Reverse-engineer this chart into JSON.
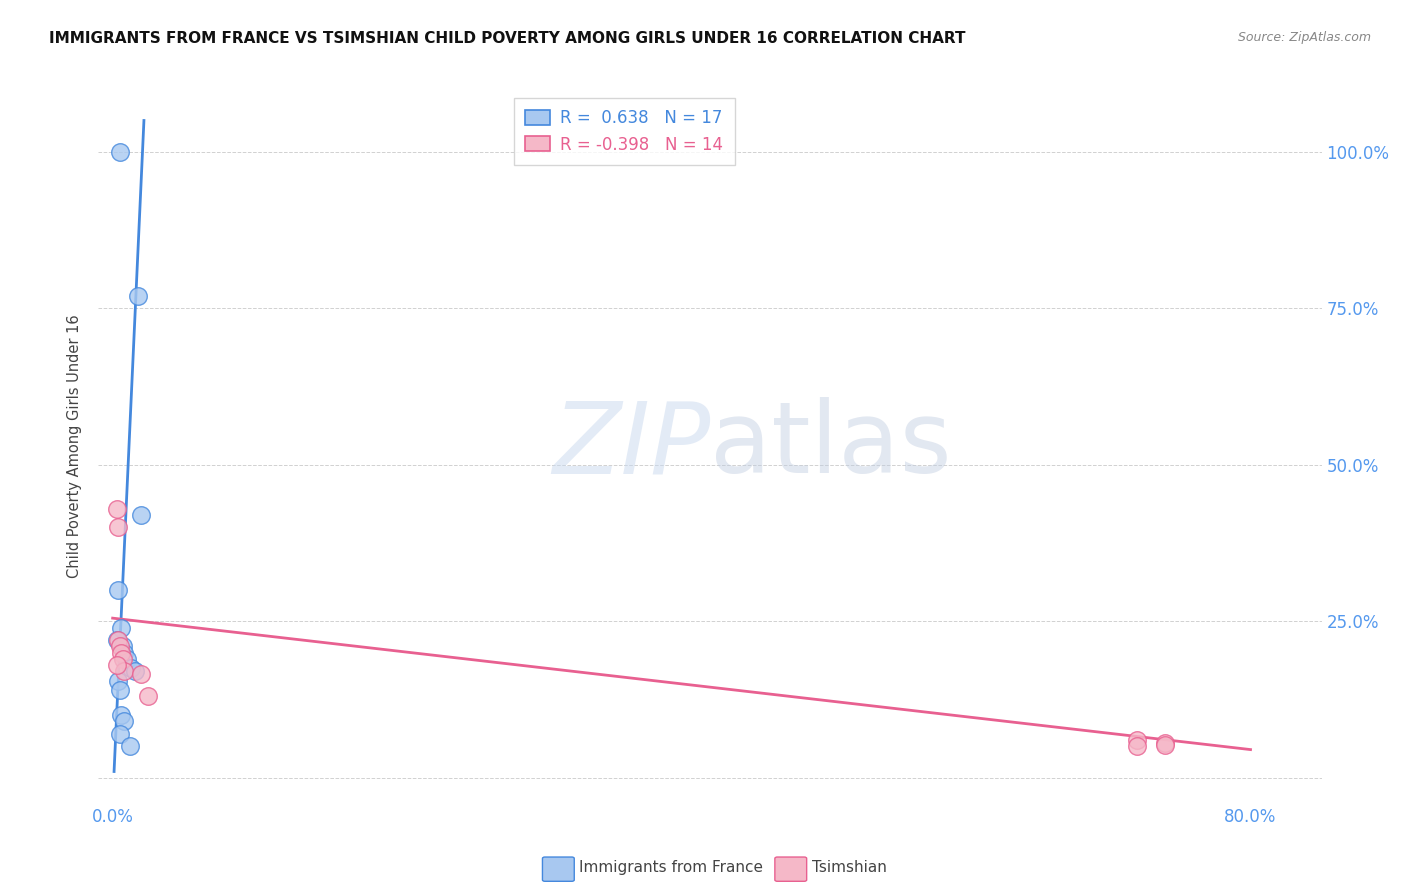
{
  "title": "IMMIGRANTS FROM FRANCE VS TSIMSHIAN CHILD POVERTY AMONG GIRLS UNDER 16 CORRELATION CHART",
  "source": "Source: ZipAtlas.com",
  "ylabel": "Child Poverty Among Girls Under 16",
  "legend_blue_r": "0.638",
  "legend_blue_n": "17",
  "legend_pink_r": "-0.398",
  "legend_pink_n": "14",
  "blue_scatter_x": [
    0.005,
    0.018,
    0.02,
    0.004,
    0.006,
    0.003,
    0.007,
    0.008,
    0.01,
    0.013,
    0.016,
    0.004,
    0.005,
    0.006,
    0.008,
    0.005,
    0.012
  ],
  "blue_scatter_y": [
    1.0,
    0.77,
    0.42,
    0.3,
    0.24,
    0.22,
    0.21,
    0.2,
    0.19,
    0.175,
    0.17,
    0.155,
    0.14,
    0.1,
    0.09,
    0.07,
    0.05
  ],
  "pink_scatter_x": [
    0.003,
    0.004,
    0.004,
    0.005,
    0.006,
    0.007,
    0.008,
    0.02,
    0.025,
    0.72,
    0.74,
    0.72,
    0.74,
    0.003
  ],
  "pink_scatter_y": [
    0.43,
    0.4,
    0.22,
    0.21,
    0.2,
    0.19,
    0.17,
    0.165,
    0.13,
    0.06,
    0.055,
    0.05,
    0.052,
    0.18
  ],
  "blue_line_x": [
    0.001,
    0.022
  ],
  "blue_line_y": [
    0.01,
    1.05
  ],
  "pink_line_x": [
    0.0,
    0.8
  ],
  "pink_line_y": [
    0.255,
    0.045
  ],
  "blue_color": "#a8c8f0",
  "pink_color": "#f5b8c8",
  "blue_line_color": "#4488dd",
  "pink_line_color": "#e86090",
  "watermark_zip": "ZIP",
  "watermark_atlas": "atlas",
  "background_color": "#ffffff",
  "xlim": [
    -0.01,
    0.85
  ],
  "ylim": [
    -0.04,
    1.1
  ],
  "yticks": [
    0.0,
    0.25,
    0.5,
    0.75,
    1.0
  ],
  "xticks": [
    0.0,
    0.1,
    0.2,
    0.3,
    0.4,
    0.5,
    0.6,
    0.7,
    0.8
  ]
}
